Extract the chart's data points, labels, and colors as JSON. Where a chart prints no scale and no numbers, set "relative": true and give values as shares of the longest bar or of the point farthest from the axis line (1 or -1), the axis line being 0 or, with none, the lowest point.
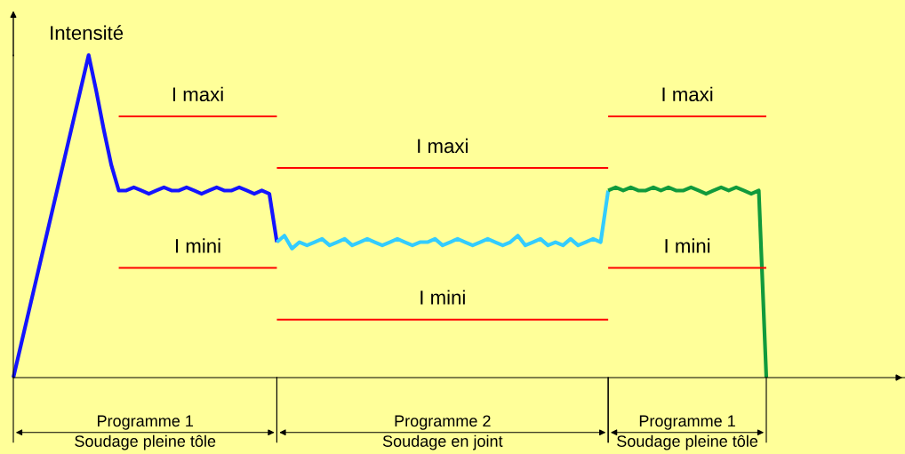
{
  "chart_data": {
    "type": "line",
    "relative": true,
    "ylabel": "Intensité",
    "marker": "none",
    "line_style": "solid",
    "categories": [
      null,
      null,
      null,
      null,
      null,
      null,
      null,
      null,
      null,
      null,
      null,
      null,
      null,
      null,
      null,
      null,
      null,
      null,
      null,
      null,
      null,
      null,
      null,
      null,
      null,
      null,
      null,
      null,
      null,
      null,
      null,
      null,
      null,
      null,
      null,
      null,
      null,
      null,
      null,
      null,
      null,
      null,
      null,
      null,
      null,
      null,
      null,
      null,
      null,
      null,
      null,
      null,
      null,
      null,
      null,
      null,
      null,
      null,
      null,
      null,
      null,
      null,
      null,
      null,
      null,
      null,
      null,
      null,
      null,
      null,
      null,
      null,
      null,
      null,
      null,
      null,
      null,
      null,
      null,
      null,
      null,
      null,
      null,
      null,
      null,
      null,
      null,
      null,
      null,
      null,
      null,
      null,
      null,
      null,
      null,
      null,
      null,
      null,
      null,
      null,
      null
    ],
    "series": [
      {
        "color": "#1414ff",
        "values": [
          0,
          0.1,
          0.2,
          0.3,
          0.4,
          0.5,
          0.6,
          0.7,
          0.8,
          0.9,
          1,
          0.89,
          0.77,
          0.66,
          0.58,
          0.58,
          0.59,
          0.58,
          0.57,
          0.58,
          0.59,
          0.58,
          0.58,
          0.59,
          0.58,
          0.57,
          0.58,
          0.59,
          0.58,
          0.58,
          0.59,
          0.58,
          0.57,
          0.58,
          0.57,
          0.42,
          null,
          null,
          null,
          null,
          null,
          null,
          null,
          null,
          null,
          null,
          null,
          null,
          null,
          null,
          null,
          null,
          null,
          null,
          null,
          null,
          null,
          null,
          null,
          null,
          null,
          null,
          null,
          null,
          null,
          null,
          null,
          null,
          null,
          null,
          null,
          null,
          null,
          null,
          null,
          null,
          null,
          null,
          null,
          null,
          null,
          null,
          null,
          null,
          null,
          null,
          null,
          null,
          null,
          null,
          null,
          null,
          null,
          null,
          null,
          null,
          null,
          null,
          null,
          null,
          null
        ]
      },
      {
        "color": "#33ccff",
        "values": [
          null,
          null,
          null,
          null,
          null,
          null,
          null,
          null,
          null,
          null,
          null,
          null,
          null,
          null,
          null,
          null,
          null,
          null,
          null,
          null,
          null,
          null,
          null,
          null,
          null,
          null,
          null,
          null,
          null,
          null,
          null,
          null,
          null,
          null,
          null,
          0.42,
          0.44,
          0.4,
          0.42,
          0.41,
          0.42,
          0.43,
          0.41,
          0.42,
          0.43,
          0.41,
          0.42,
          0.43,
          0.42,
          0.41,
          0.42,
          0.43,
          0.42,
          0.41,
          0.42,
          0.42,
          0.43,
          0.41,
          0.42,
          0.43,
          0.42,
          0.41,
          0.42,
          0.43,
          0.42,
          0.41,
          0.42,
          0.44,
          0.41,
          0.42,
          0.43,
          0.41,
          0.42,
          0.41,
          0.43,
          0.41,
          0.42,
          0.43,
          0.42,
          0.58,
          null,
          null,
          null,
          null,
          null,
          null,
          null,
          null,
          null,
          null,
          null,
          null,
          null,
          null,
          null,
          null,
          null,
          null,
          null,
          null,
          null
        ]
      },
      {
        "color": "#119a3c",
        "values": [
          null,
          null,
          null,
          null,
          null,
          null,
          null,
          null,
          null,
          null,
          null,
          null,
          null,
          null,
          null,
          null,
          null,
          null,
          null,
          null,
          null,
          null,
          null,
          null,
          null,
          null,
          null,
          null,
          null,
          null,
          null,
          null,
          null,
          null,
          null,
          null,
          null,
          null,
          null,
          null,
          null,
          null,
          null,
          null,
          null,
          null,
          null,
          null,
          null,
          null,
          null,
          null,
          null,
          null,
          null,
          null,
          null,
          null,
          null,
          null,
          null,
          null,
          null,
          null,
          null,
          null,
          null,
          null,
          null,
          null,
          null,
          null,
          null,
          null,
          null,
          null,
          null,
          null,
          null,
          0.58,
          0.59,
          0.58,
          0.59,
          0.58,
          0.58,
          0.59,
          0.58,
          0.59,
          0.58,
          0.58,
          0.59,
          0.58,
          0.57,
          0.58,
          0.59,
          0.58,
          0.59,
          0.58,
          0.57,
          0.58,
          0
        ]
      },
      {
        "name": "I maxi",
        "color": "#ff0000",
        "values": [
          null,
          null,
          null,
          null,
          null,
          null,
          null,
          null,
          null,
          null,
          null,
          null,
          null,
          null,
          0.81,
          0.81,
          0.81,
          0.81,
          0.81,
          0.81,
          0.81,
          0.81,
          0.81,
          0.81,
          0.81,
          0.81,
          0.81,
          0.81,
          0.81,
          0.81,
          0.81,
          0.81,
          0.81,
          0.81,
          0.81,
          0.81,
          null,
          null,
          null,
          null,
          null,
          null,
          null,
          null,
          null,
          null,
          null,
          null,
          null,
          null,
          null,
          null,
          null,
          null,
          null,
          null,
          null,
          null,
          null,
          null,
          null,
          null,
          null,
          null,
          null,
          null,
          null,
          null,
          null,
          null,
          null,
          null,
          null,
          null,
          null,
          null,
          null,
          null,
          null,
          null,
          null,
          null,
          null,
          null,
          null,
          null,
          null,
          null,
          null,
          null,
          null,
          null,
          null,
          null,
          null,
          null,
          null,
          null,
          null,
          null,
          null
        ]
      },
      {
        "name": "I mini",
        "color": "#ff0000",
        "values": [
          null,
          null,
          null,
          null,
          null,
          null,
          null,
          null,
          null,
          null,
          null,
          null,
          null,
          null,
          0.34,
          0.34,
          0.34,
          0.34,
          0.34,
          0.34,
          0.34,
          0.34,
          0.34,
          0.34,
          0.34,
          0.34,
          0.34,
          0.34,
          0.34,
          0.34,
          0.34,
          0.34,
          0.34,
          0.34,
          0.34,
          0.34,
          null,
          null,
          null,
          null,
          null,
          null,
          null,
          null,
          null,
          null,
          null,
          null,
          null,
          null,
          null,
          null,
          null,
          null,
          null,
          null,
          null,
          null,
          null,
          null,
          null,
          null,
          null,
          null,
          null,
          null,
          null,
          null,
          null,
          null,
          null,
          null,
          null,
          null,
          null,
          null,
          null,
          null,
          null,
          null,
          null,
          null,
          null,
          null,
          null,
          null,
          null,
          null,
          null,
          null,
          null,
          null,
          null,
          null,
          null,
          null,
          null,
          null,
          null,
          null,
          null
        ]
      },
      {
        "name": "I maxi",
        "color": "#ff0000",
        "values": [
          null,
          null,
          null,
          null,
          null,
          null,
          null,
          null,
          null,
          null,
          null,
          null,
          null,
          null,
          null,
          null,
          null,
          null,
          null,
          null,
          null,
          null,
          null,
          null,
          null,
          null,
          null,
          null,
          null,
          null,
          null,
          null,
          null,
          null,
          null,
          0.65,
          0.65,
          0.65,
          0.65,
          0.65,
          0.65,
          0.65,
          0.65,
          0.65,
          0.65,
          0.65,
          0.65,
          0.65,
          0.65,
          0.65,
          0.65,
          0.65,
          0.65,
          0.65,
          0.65,
          0.65,
          0.65,
          0.65,
          0.65,
          0.65,
          0.65,
          0.65,
          0.65,
          0.65,
          0.65,
          0.65,
          0.65,
          0.65,
          0.65,
          0.65,
          0.65,
          0.65,
          0.65,
          0.65,
          0.65,
          0.65,
          0.65,
          0.65,
          0.65,
          0.65,
          null,
          null,
          null,
          null,
          null,
          null,
          null,
          null,
          null,
          null,
          null,
          null,
          null,
          null,
          null,
          null,
          null,
          null,
          null,
          null,
          null
        ]
      },
      {
        "name": "I mini",
        "color": "#ff0000",
        "values": [
          null,
          null,
          null,
          null,
          null,
          null,
          null,
          null,
          null,
          null,
          null,
          null,
          null,
          null,
          null,
          null,
          null,
          null,
          null,
          null,
          null,
          null,
          null,
          null,
          null,
          null,
          null,
          null,
          null,
          null,
          null,
          null,
          null,
          null,
          null,
          0.18,
          0.18,
          0.18,
          0.18,
          0.18,
          0.18,
          0.18,
          0.18,
          0.18,
          0.18,
          0.18,
          0.18,
          0.18,
          0.18,
          0.18,
          0.18,
          0.18,
          0.18,
          0.18,
          0.18,
          0.18,
          0.18,
          0.18,
          0.18,
          0.18,
          0.18,
          0.18,
          0.18,
          0.18,
          0.18,
          0.18,
          0.18,
          0.18,
          0.18,
          0.18,
          0.18,
          0.18,
          0.18,
          0.18,
          0.18,
          0.18,
          0.18,
          0.18,
          0.18,
          0.18,
          null,
          null,
          null,
          null,
          null,
          null,
          null,
          null,
          null,
          null,
          null,
          null,
          null,
          null,
          null,
          null,
          null,
          null,
          null,
          null,
          null
        ]
      },
      {
        "name": "I maxi",
        "color": "#ff0000",
        "values": [
          null,
          null,
          null,
          null,
          null,
          null,
          null,
          null,
          null,
          null,
          null,
          null,
          null,
          null,
          null,
          null,
          null,
          null,
          null,
          null,
          null,
          null,
          null,
          null,
          null,
          null,
          null,
          null,
          null,
          null,
          null,
          null,
          null,
          null,
          null,
          null,
          null,
          null,
          null,
          null,
          null,
          null,
          null,
          null,
          null,
          null,
          null,
          null,
          null,
          null,
          null,
          null,
          null,
          null,
          null,
          null,
          null,
          null,
          null,
          null,
          null,
          null,
          null,
          null,
          null,
          null,
          null,
          null,
          null,
          null,
          null,
          null,
          null,
          null,
          null,
          null,
          null,
          null,
          null,
          0.81,
          0.81,
          0.81,
          0.81,
          0.81,
          0.81,
          0.81,
          0.81,
          0.81,
          0.81,
          0.81,
          0.81,
          0.81,
          0.81,
          0.81,
          0.81,
          0.81,
          0.81,
          0.81,
          0.81,
          0.81,
          0.81
        ]
      },
      {
        "name": "I mini",
        "color": "#ff0000",
        "values": [
          null,
          null,
          null,
          null,
          null,
          null,
          null,
          null,
          null,
          null,
          null,
          null,
          null,
          null,
          null,
          null,
          null,
          null,
          null,
          null,
          null,
          null,
          null,
          null,
          null,
          null,
          null,
          null,
          null,
          null,
          null,
          null,
          null,
          null,
          null,
          null,
          null,
          null,
          null,
          null,
          null,
          null,
          null,
          null,
          null,
          null,
          null,
          null,
          null,
          null,
          null,
          null,
          null,
          null,
          null,
          null,
          null,
          null,
          null,
          null,
          null,
          null,
          null,
          null,
          null,
          null,
          null,
          null,
          null,
          null,
          null,
          null,
          null,
          null,
          null,
          null,
          null,
          null,
          null,
          0.34,
          0.34,
          0.34,
          0.34,
          0.34,
          0.34,
          0.34,
          0.34,
          0.34,
          0.34,
          0.34,
          0.34,
          0.34,
          0.34,
          0.34,
          0.34,
          0.34,
          0.34,
          0.34,
          0.34,
          0.34,
          0.34
        ]
      }
    ],
    "annotations": [
      "Programme 1\nSoudage pleine tôle",
      "Programme 2\nSoudage en joint",
      "Programme 1\nSoudage pleine tôle"
    ]
  }
}
